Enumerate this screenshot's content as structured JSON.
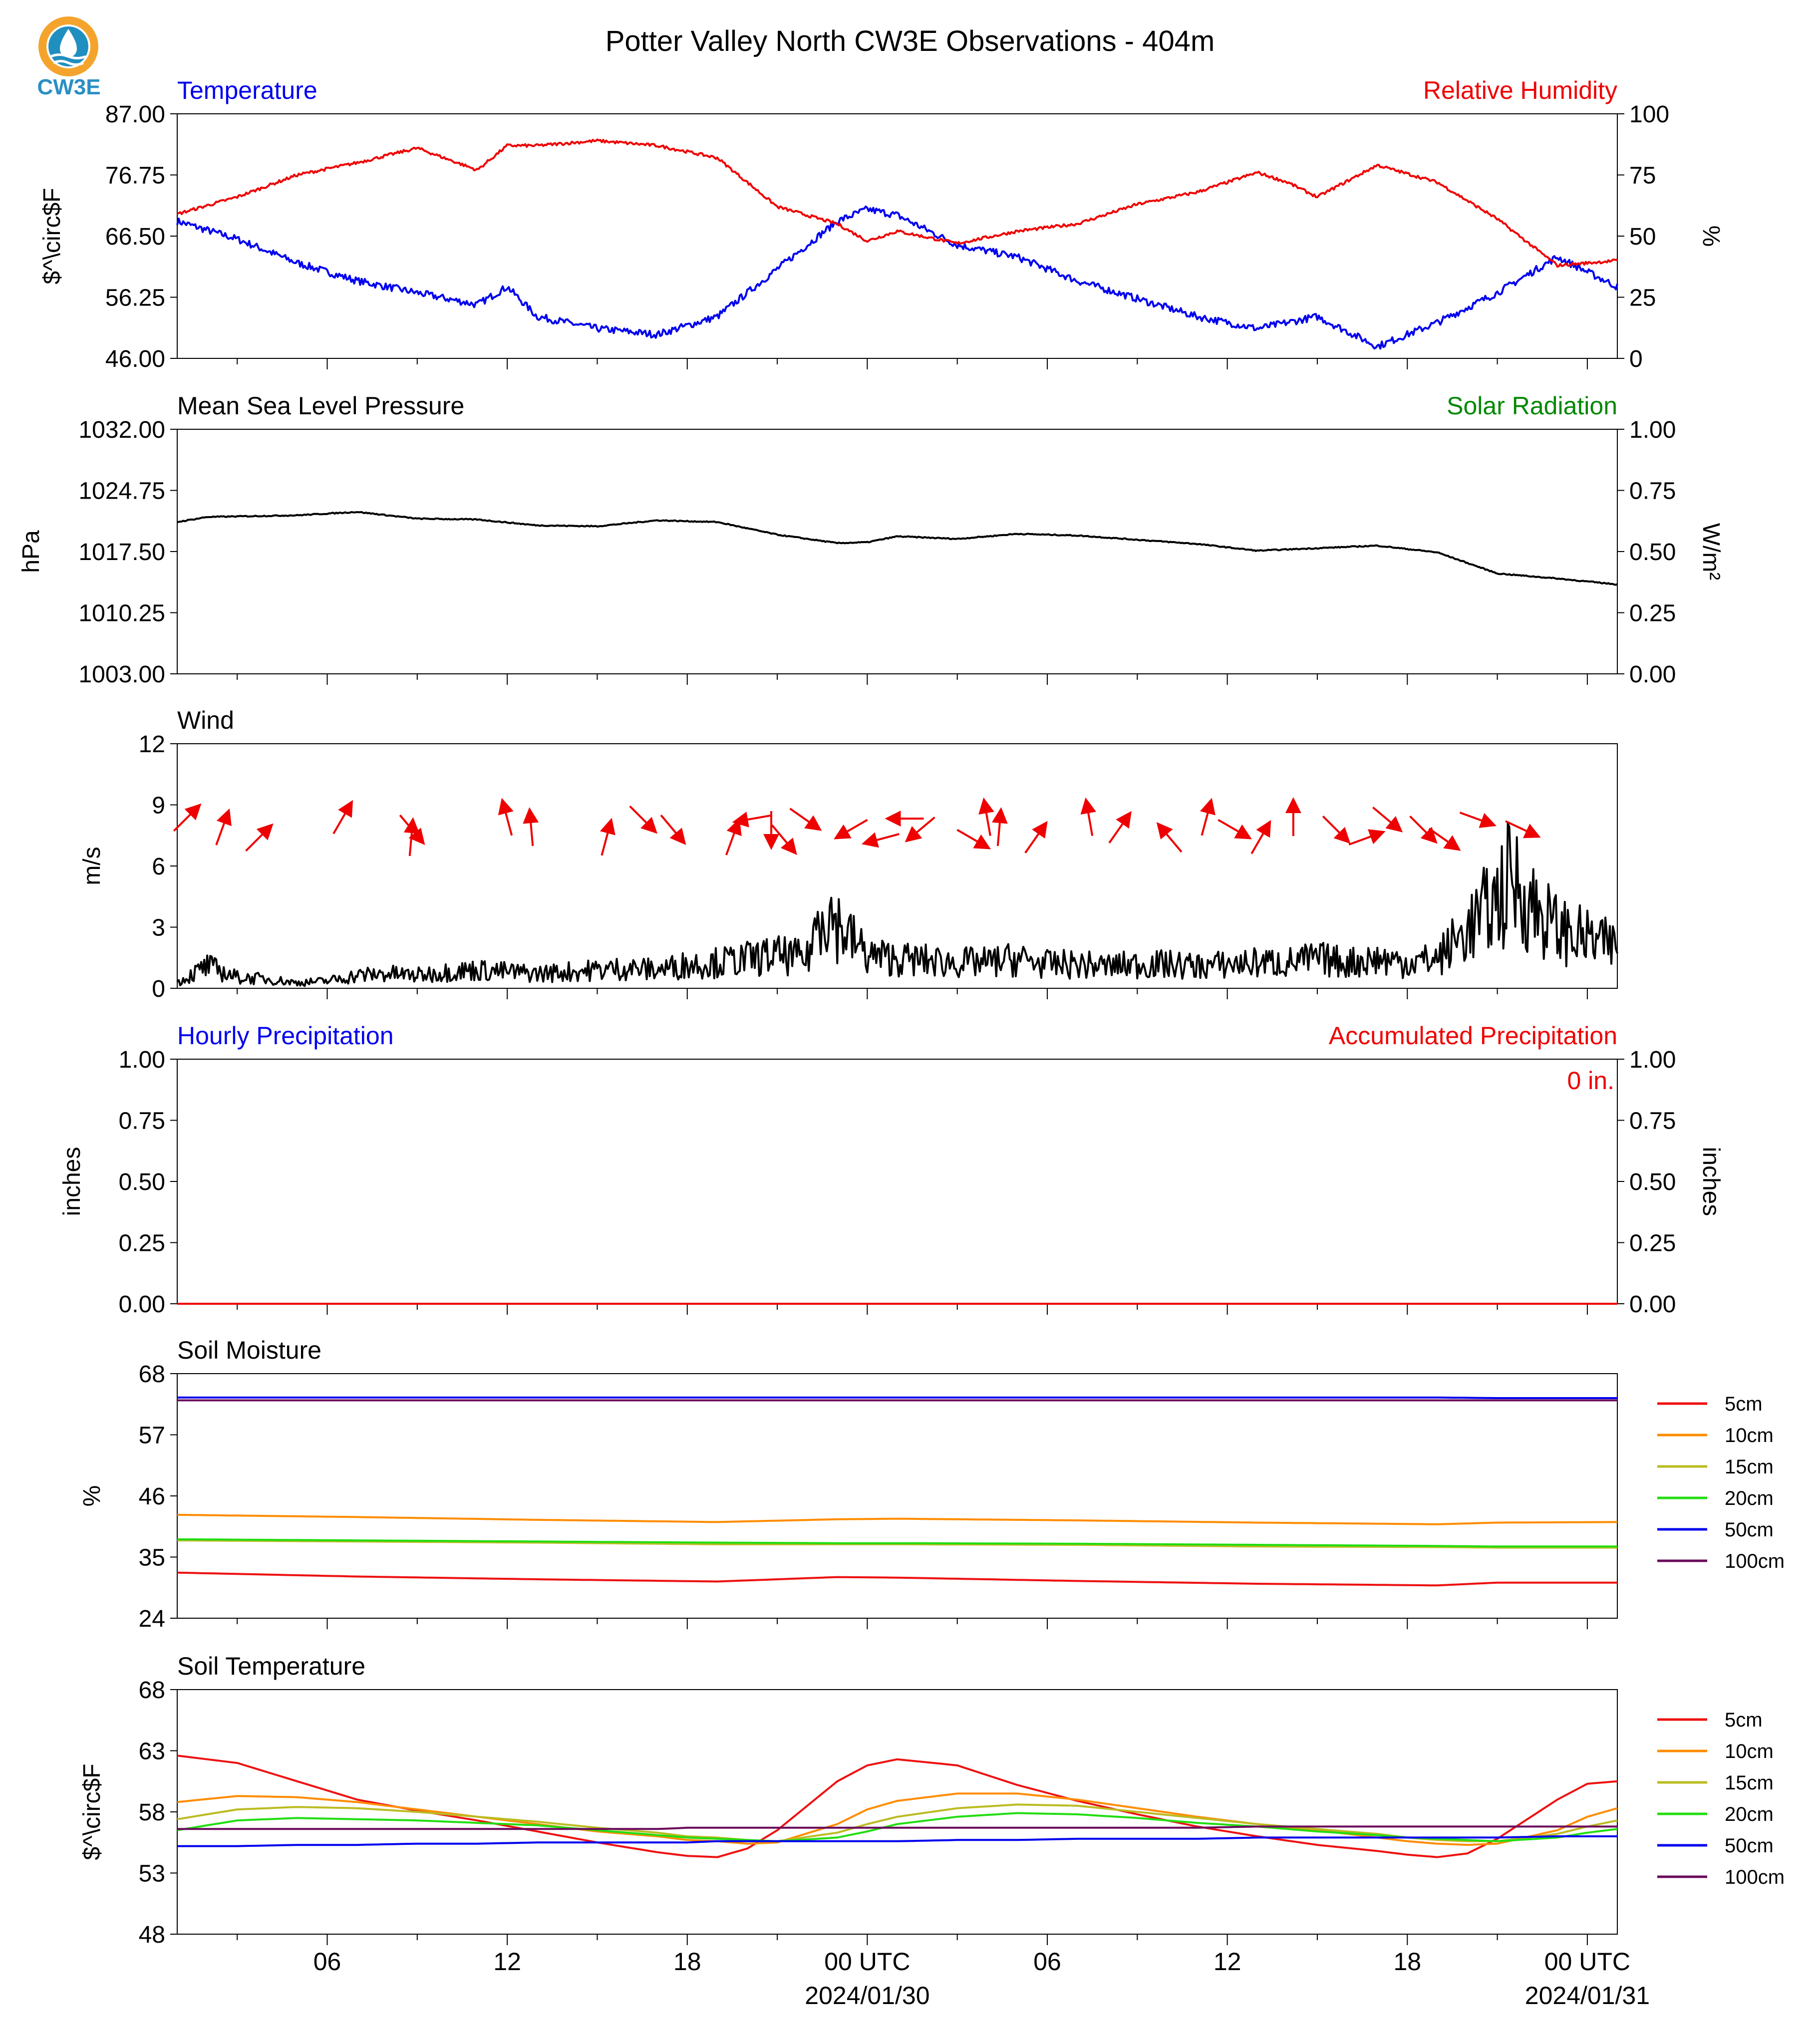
{
  "title": "Potter Valley North CW3E Observations - 404m",
  "logo_text": "CW3E",
  "x_axis": {
    "start": "2024-01-29 01:00 UTC",
    "end": "2024-01-31 01:00 UTC",
    "tick_labels": [
      "06",
      "12",
      "18",
      "00 UTC",
      "06",
      "12",
      "18",
      "00 UTC"
    ],
    "date_labels": [
      "2024/01/30",
      "2024/01/31"
    ]
  },
  "chart_data": [
    {
      "type": "line",
      "title_left": "Temperature",
      "title_right": "Relative Humidity",
      "ylabel_left": "$^\\circ$F",
      "ylabel_right": "%",
      "ylim_left": [
        46,
        87
      ],
      "ylim_right": [
        0,
        100
      ],
      "yticks_left": [
        "46.00",
        "56.25",
        "66.50",
        "76.75",
        "87.00"
      ],
      "yticks_right": [
        "0",
        "25",
        "50",
        "75",
        "100"
      ],
      "x_hours": [
        0,
        2,
        4,
        6,
        8,
        10,
        11,
        12,
        14,
        16,
        18,
        20,
        22,
        23,
        24,
        26,
        28,
        30,
        32,
        34,
        36,
        37,
        38,
        40,
        42,
        44,
        46,
        48
      ],
      "series": [
        {
          "name": "Temperature",
          "axis": "left",
          "color": "#0000ee",
          "values": [
            69,
            66,
            62,
            59,
            57,
            55,
            58,
            53,
            51,
            50,
            53,
            61,
            69,
            71,
            70,
            65,
            63,
            59,
            56,
            53,
            51,
            52,
            53,
            48,
            52,
            57,
            63,
            58
          ]
        },
        {
          "name": "Relative Humidity",
          "axis": "right",
          "color": "#ee0000",
          "values": [
            59,
            66,
            75,
            80,
            86,
            77,
            87,
            87,
            89,
            87,
            82,
            62,
            55,
            48,
            52,
            47,
            52,
            55,
            63,
            68,
            76,
            72,
            66,
            79,
            72,
            57,
            38,
            40
          ]
        }
      ]
    },
    {
      "type": "line",
      "title_left": "Mean Sea Level Pressure",
      "title_right": "Solar Radiation",
      "ylabel_left": "hPa",
      "ylabel_right": "W/m²",
      "ylim_left": [
        1003,
        1032
      ],
      "ylim_right": [
        0,
        1
      ],
      "yticks_left": [
        "1003.00",
        "1010.25",
        "1017.50",
        "1024.75",
        "1032.00"
      ],
      "yticks_right": [
        "0.00",
        "0.25",
        "0.50",
        "0.75",
        "1.00"
      ],
      "x_hours": [
        0,
        1,
        4,
        6,
        8,
        10,
        12,
        14,
        16,
        18,
        20,
        22,
        23,
        24,
        26,
        28,
        30,
        32,
        34,
        36,
        38,
        40,
        42,
        44,
        46,
        48
      ],
      "series": [
        {
          "name": "Mean Sea Level Pressure",
          "axis": "left",
          "color": "#000000",
          "values": [
            1021.0,
            1021.6,
            1021.8,
            1022.2,
            1021.4,
            1021.3,
            1020.6,
            1020.5,
            1021.2,
            1021.0,
            1019.5,
            1018.5,
            1018.6,
            1019.3,
            1019.0,
            1019.6,
            1019.4,
            1018.9,
            1018.4,
            1017.6,
            1017.9,
            1018.2,
            1017.4,
            1014.9,
            1014.3,
            1013.6
          ]
        }
      ]
    },
    {
      "type": "line",
      "title_left": "Wind",
      "ylabel_left": "m/s",
      "ylim_left": [
        0,
        12
      ],
      "yticks_left": [
        "0",
        "3",
        "6",
        "9",
        "12"
      ],
      "x_hours": [
        0,
        1,
        2,
        3,
        4,
        5,
        6,
        7,
        8,
        9,
        10,
        11,
        12,
        13,
        14,
        15,
        16,
        17,
        18,
        19,
        20,
        21,
        21.5,
        22,
        23,
        24,
        25,
        26,
        27,
        28,
        29,
        30,
        31,
        32,
        33,
        34,
        35,
        36,
        37,
        38,
        39,
        40,
        41,
        42,
        43,
        44,
        44.5,
        45,
        46,
        47,
        48
      ],
      "series": [
        {
          "name": "Wind Speed",
          "axis": "left",
          "color": "#000000",
          "values": [
            0.3,
            1.2,
            0.6,
            0.5,
            0.3,
            0.4,
            0.7,
            0.8,
            0.7,
            0.9,
            1.0,
            0.9,
            0.8,
            0.9,
            1.0,
            1.1,
            1.0,
            1.3,
            1.4,
            1.6,
            1.8,
            1.6,
            4.6,
            3.5,
            1.8,
            1.6,
            1.5,
            1.4,
            1.4,
            1.6,
            1.3,
            1.3,
            1.2,
            1.3,
            1.3,
            1.2,
            1.3,
            1.4,
            1.4,
            1.6,
            1.4,
            1.6,
            1.4,
            1.6,
            3.2,
            4.8,
            6.0,
            4.8,
            3.2,
            2.7,
            2.2
          ]
        }
      ],
      "wind_direction_arrows": [
        {
          "hour": 0.3,
          "dir_deg": 45
        },
        {
          "hour": 1.5,
          "dir_deg": 20
        },
        {
          "hour": 2.7,
          "dir_deg": 45
        },
        {
          "hour": 5.5,
          "dir_deg": 30
        },
        {
          "hour": 7.8,
          "dir_deg": 140
        },
        {
          "hour": 7.8,
          "dir_deg": 5
        },
        {
          "hour": 11,
          "dir_deg": 345
        },
        {
          "hour": 11.8,
          "dir_deg": 355
        },
        {
          "hour": 14.3,
          "dir_deg": 15
        },
        {
          "hour": 15.5,
          "dir_deg": 135
        },
        {
          "hour": 16.5,
          "dir_deg": 140
        },
        {
          "hour": 18.5,
          "dir_deg": 20
        },
        {
          "hour": 19.2,
          "dir_deg": 260
        },
        {
          "hour": 19.8,
          "dir_deg": 180
        },
        {
          "hour": 20.2,
          "dir_deg": 140
        },
        {
          "hour": 20.9,
          "dir_deg": 125
        },
        {
          "hour": 22.5,
          "dir_deg": 240
        },
        {
          "hour": 23.5,
          "dir_deg": 255
        },
        {
          "hour": 24.3,
          "dir_deg": 270
        },
        {
          "hour": 24.8,
          "dir_deg": 230
        },
        {
          "hour": 26.5,
          "dir_deg": 120
        },
        {
          "hour": 27.0,
          "dir_deg": 350
        },
        {
          "hour": 27.4,
          "dir_deg": 5
        },
        {
          "hour": 28.6,
          "dir_deg": 35
        },
        {
          "hour": 30.4,
          "dir_deg": 350
        },
        {
          "hour": 31.4,
          "dir_deg": 35
        },
        {
          "hour": 33.1,
          "dir_deg": 320
        },
        {
          "hour": 34.3,
          "dir_deg": 15
        },
        {
          "hour": 35.2,
          "dir_deg": 120
        },
        {
          "hour": 36.1,
          "dir_deg": 30
        },
        {
          "hour": 37.2,
          "dir_deg": 0
        },
        {
          "hour": 38.6,
          "dir_deg": 135
        },
        {
          "hour": 39.6,
          "dir_deg": 70
        },
        {
          "hour": 40.3,
          "dir_deg": 130
        },
        {
          "hour": 41.5,
          "dir_deg": 135
        },
        {
          "hour": 42.2,
          "dir_deg": 125
        },
        {
          "hour": 43.3,
          "dir_deg": 110
        },
        {
          "hour": 44.8,
          "dir_deg": 115
        }
      ]
    },
    {
      "type": "line",
      "title_left": "Hourly Precipitation",
      "title_right": "Accumulated Precipitation",
      "annotation": "0 in.",
      "ylabel_left": "inches",
      "ylabel_right": "inches",
      "ylim_left": [
        0,
        1
      ],
      "ylim_right": [
        0,
        1
      ],
      "yticks_left": [
        "0.00",
        "0.25",
        "0.50",
        "0.75",
        "1.00"
      ],
      "yticks_right": [
        "0.00",
        "0.25",
        "0.50",
        "0.75",
        "1.00"
      ],
      "x_hours": [
        0,
        48
      ],
      "series": [
        {
          "name": "Hourly Precipitation",
          "axis": "left",
          "color": "#0000ee",
          "values": [
            0,
            0
          ]
        },
        {
          "name": "Accumulated Precipitation",
          "axis": "left",
          "color": "#ee0000",
          "values": [
            0,
            0
          ]
        }
      ]
    },
    {
      "type": "line",
      "title_left": "Soil Moisture",
      "ylabel_left": "%",
      "ylim_left": [
        24,
        68
      ],
      "yticks_left": [
        "24",
        "35",
        "46",
        "57",
        "68"
      ],
      "legend": "right",
      "x_hours": [
        0,
        6,
        12,
        18,
        22,
        24,
        30,
        36,
        42,
        44,
        48
      ],
      "series": [
        {
          "name": "5cm",
          "color": "#ee1111",
          "values": [
            32.2,
            31.5,
            31.0,
            30.6,
            31.4,
            31.3,
            30.7,
            30.2,
            29.9,
            30.4,
            30.4
          ]
        },
        {
          "name": "10cm",
          "color": "#ff8c00",
          "values": [
            42.6,
            42.2,
            41.7,
            41.3,
            41.8,
            41.9,
            41.6,
            41.2,
            40.9,
            41.2,
            41.3
          ]
        },
        {
          "name": "15cm",
          "color": "#bbbb22",
          "values": [
            38.0,
            37.8,
            37.6,
            37.3,
            37.3,
            37.3,
            37.2,
            36.9,
            36.8,
            36.7,
            36.7
          ]
        },
        {
          "name": "20cm",
          "color": "#22dd11",
          "values": [
            38.2,
            38.0,
            37.8,
            37.6,
            37.5,
            37.5,
            37.4,
            37.2,
            37.0,
            36.9,
            36.9
          ]
        },
        {
          "name": "50cm",
          "color": "#0000ee",
          "values": [
            63.7,
            63.7,
            63.7,
            63.7,
            63.7,
            63.7,
            63.7,
            63.7,
            63.7,
            63.6,
            63.6
          ]
        },
        {
          "name": "100cm",
          "color": "#6a0a5a",
          "values": [
            63.2,
            63.2,
            63.2,
            63.2,
            63.2,
            63.2,
            63.2,
            63.2,
            63.2,
            63.2,
            63.2
          ]
        }
      ]
    },
    {
      "type": "line",
      "title_left": "Soil Temperature",
      "ylabel_left": "$^\\circ$F",
      "ylim_left": [
        48,
        68
      ],
      "yticks_left": [
        "48",
        "53",
        "58",
        "63",
        "68"
      ],
      "legend": "right",
      "x_hours": [
        0,
        2,
        4,
        6,
        8,
        10,
        12,
        14,
        16,
        17,
        18,
        19,
        20,
        22,
        23,
        24,
        26,
        28,
        30,
        32,
        34,
        36,
        38,
        40,
        41,
        42,
        43,
        44,
        46,
        47,
        48
      ],
      "series": [
        {
          "name": "5cm",
          "color": "#ee1111",
          "values": [
            62.6,
            62.0,
            60.5,
            59.0,
            58.1,
            57.3,
            56.4,
            55.5,
            54.7,
            54.4,
            54.3,
            55.0,
            56.5,
            60.5,
            61.8,
            62.3,
            61.8,
            60.2,
            58.9,
            57.8,
            56.8,
            56.0,
            55.3,
            54.8,
            54.5,
            54.3,
            54.6,
            55.8,
            59.0,
            60.3,
            60.5
          ]
        },
        {
          "name": "10cm",
          "color": "#ff8c00",
          "values": [
            58.8,
            59.3,
            59.2,
            58.8,
            58.2,
            57.6,
            57.0,
            56.4,
            56.0,
            55.7,
            55.6,
            55.4,
            55.5,
            57.0,
            58.2,
            58.9,
            59.5,
            59.5,
            59.0,
            58.3,
            57.6,
            57.0,
            56.5,
            55.9,
            55.6,
            55.4,
            55.3,
            55.4,
            56.5,
            57.6,
            58.3
          ]
        },
        {
          "name": "15cm",
          "color": "#bbbb22",
          "values": [
            57.4,
            58.2,
            58.4,
            58.3,
            58.0,
            57.6,
            57.2,
            56.7,
            56.3,
            56.0,
            55.9,
            55.7,
            55.6,
            56.3,
            57.0,
            57.6,
            58.3,
            58.6,
            58.5,
            58.0,
            57.5,
            57.0,
            56.6,
            56.2,
            55.9,
            55.7,
            55.6,
            55.6,
            56.2,
            56.8,
            57.3
          ]
        },
        {
          "name": "20cm",
          "color": "#22dd11",
          "values": [
            56.5,
            57.3,
            57.5,
            57.4,
            57.3,
            57.1,
            56.9,
            56.5,
            56.1,
            55.9,
            55.8,
            55.7,
            55.6,
            55.9,
            56.4,
            57.0,
            57.6,
            57.9,
            57.8,
            57.5,
            57.1,
            56.8,
            56.4,
            56.1,
            55.9,
            55.8,
            55.7,
            55.6,
            55.9,
            56.3,
            56.6
          ]
        },
        {
          "name": "50cm",
          "color": "#0000ee",
          "values": [
            55.2,
            55.2,
            55.3,
            55.3,
            55.4,
            55.4,
            55.5,
            55.5,
            55.5,
            55.5,
            55.6,
            55.6,
            55.6,
            55.6,
            55.6,
            55.6,
            55.7,
            55.7,
            55.8,
            55.8,
            55.8,
            55.9,
            55.9,
            55.9,
            55.9,
            55.9,
            55.9,
            55.9,
            56.0,
            56.0,
            56.0
          ]
        },
        {
          "name": "100cm",
          "color": "#6a0a5a",
          "values": [
            56.6,
            56.6,
            56.6,
            56.6,
            56.6,
            56.6,
            56.6,
            56.6,
            56.6,
            56.7,
            56.7,
            56.7,
            56.7,
            56.7,
            56.7,
            56.7,
            56.7,
            56.7,
            56.7,
            56.7,
            56.7,
            56.8,
            56.8,
            56.8,
            56.8,
            56.8,
            56.8,
            56.8,
            56.8,
            56.8,
            56.8
          ]
        }
      ]
    }
  ]
}
